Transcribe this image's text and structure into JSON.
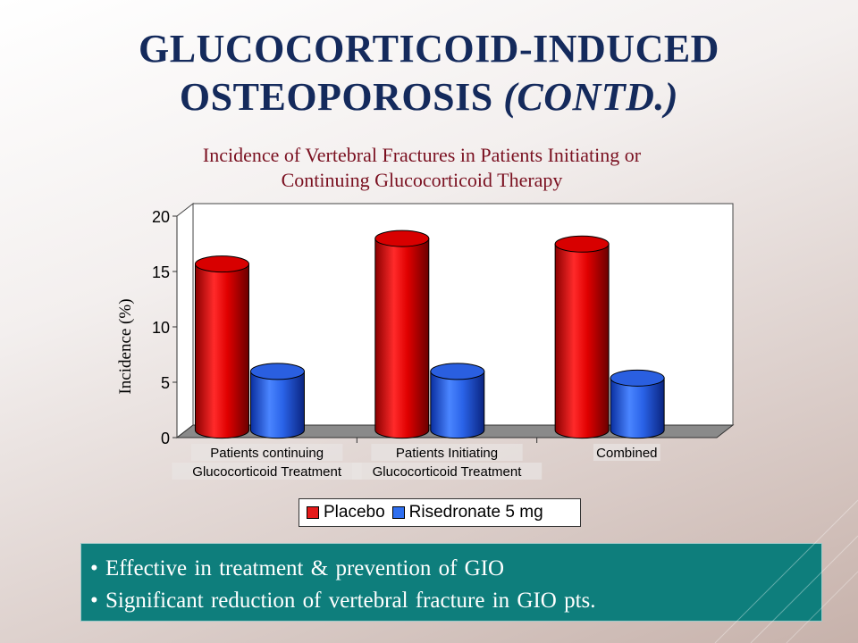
{
  "slide": {
    "title_line1": "GLUCOCORTICOID-INDUCED",
    "title_line2": "OSTEOPOROSIS",
    "title_contd": "(CONTD.)",
    "bullets": [
      "• Effective in treatment & prevention of GIO",
      "• Significant reduction of vertebral fracture in GIO pts."
    ]
  },
  "chart_data": {
    "type": "bar",
    "title_line1": "Incidence of Vertebral Fractures in Patients Initiating or",
    "title_line2": "Continuing Glucocorticoid Therapy",
    "ylabel": "Incidence (%)",
    "xlabel": "",
    "ylim": [
      0,
      20
    ],
    "yticks": [
      0,
      5,
      10,
      15,
      20
    ],
    "categories": [
      [
        "Patients continuing",
        "Glucocorticoid Treatment"
      ],
      [
        "Patients Initiating",
        "Glucocorticoid Treatment"
      ],
      [
        "Combined"
      ]
    ],
    "series": [
      {
        "name": "Placebo",
        "values": [
          15.0,
          17.3,
          16.8
        ],
        "color": "#e41a1a"
      },
      {
        "name": "Risedronate 5 mg",
        "values": [
          5.3,
          5.3,
          4.7
        ],
        "color": "#2f6ff0"
      }
    ],
    "legend_position": "bottom",
    "grid": false
  }
}
